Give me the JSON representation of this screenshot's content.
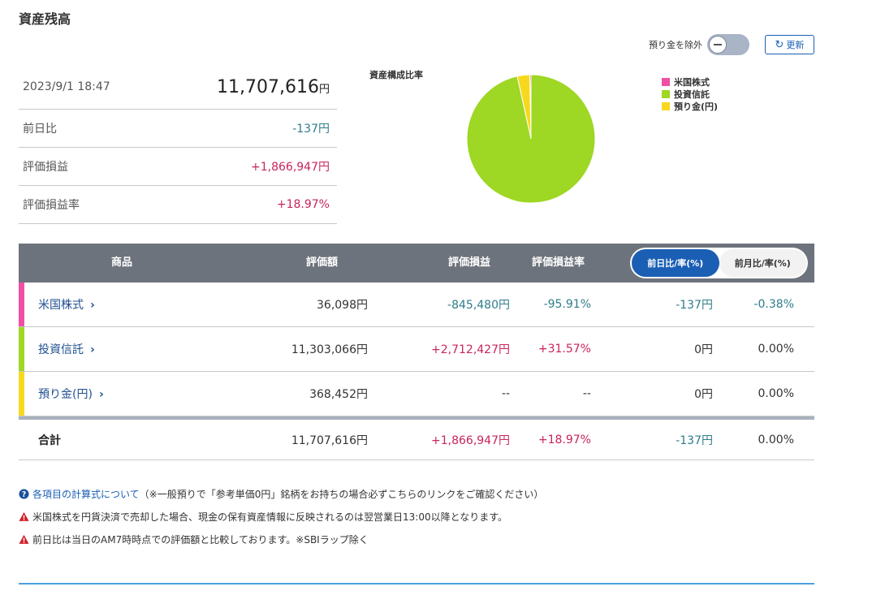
{
  "page": {
    "title": "資産残高"
  },
  "controls": {
    "exclude_label": "預り金を除外",
    "update_label": "更新"
  },
  "summary": {
    "datetime": "2023/9/1 18:47",
    "total_value": "11,707,616",
    "total_unit": "円",
    "rows": [
      {
        "label": "前日比",
        "value": "-137円"
      },
      {
        "label": "評価損益",
        "value": "+1,866,947円"
      },
      {
        "label": "評価損益率",
        "value": "+18.97%"
      }
    ]
  },
  "chart_data": {
    "type": "pie",
    "title": "資産構成比率",
    "labels": [
      "米国株式",
      "投資信託",
      "預り金(円)"
    ],
    "values": [
      36098,
      11303066,
      368452
    ],
    "colors": [
      "#f04fa6",
      "#9ed724",
      "#f7d81e"
    ],
    "legend_position": "right"
  },
  "table": {
    "headers": {
      "product": "商品",
      "valuation": "評価額",
      "pl": "評価損益",
      "pl_rate": "評価損益率"
    },
    "toggle": {
      "active": "前日比/率(%)",
      "inactive": "前月比/率(%)"
    },
    "rows": [
      {
        "name": "米国株式",
        "color": "#f04fa6",
        "valuation": "36,098円",
        "pl": "-845,480円",
        "pl_rate": "-95.91%",
        "day_change": "-137円",
        "day_rate": "-0.38%"
      },
      {
        "name": "投資信託",
        "color": "#9ed724",
        "valuation": "11,303,066円",
        "pl": "+2,712,427円",
        "pl_rate": "+31.57%",
        "day_change": "0円",
        "day_rate": "0.00%"
      },
      {
        "name": "預り金(円)",
        "color": "#f7d81e",
        "valuation": "368,452円",
        "pl": "--",
        "pl_rate": "--",
        "day_change": "0円",
        "day_rate": "0.00%"
      }
    ],
    "total": {
      "label": "合計",
      "valuation": "11,707,616円",
      "pl": "+1,866,947円",
      "pl_rate": "+18.97%",
      "day_change": "-137円",
      "day_rate": "0.00%"
    }
  },
  "notes": {
    "n1_link": "各項目の計算式について",
    "n1_text": "（※一般預りで「参考単価0円」銘柄をお持ちの場合必ずこちらのリンクをご確認ください）",
    "n2": "米国株式を円貨決済で売却した場合、現金の保有資産情報に反映されるのは翌営業日13:00以降となります。",
    "n3": "前日比は当日のAM7時時点での評価額と比較しております。※SBIラップ除く"
  },
  "colors": {
    "positive": "#c8245b",
    "negative": "#2f7d8a",
    "accent": "#1a5fb4"
  }
}
